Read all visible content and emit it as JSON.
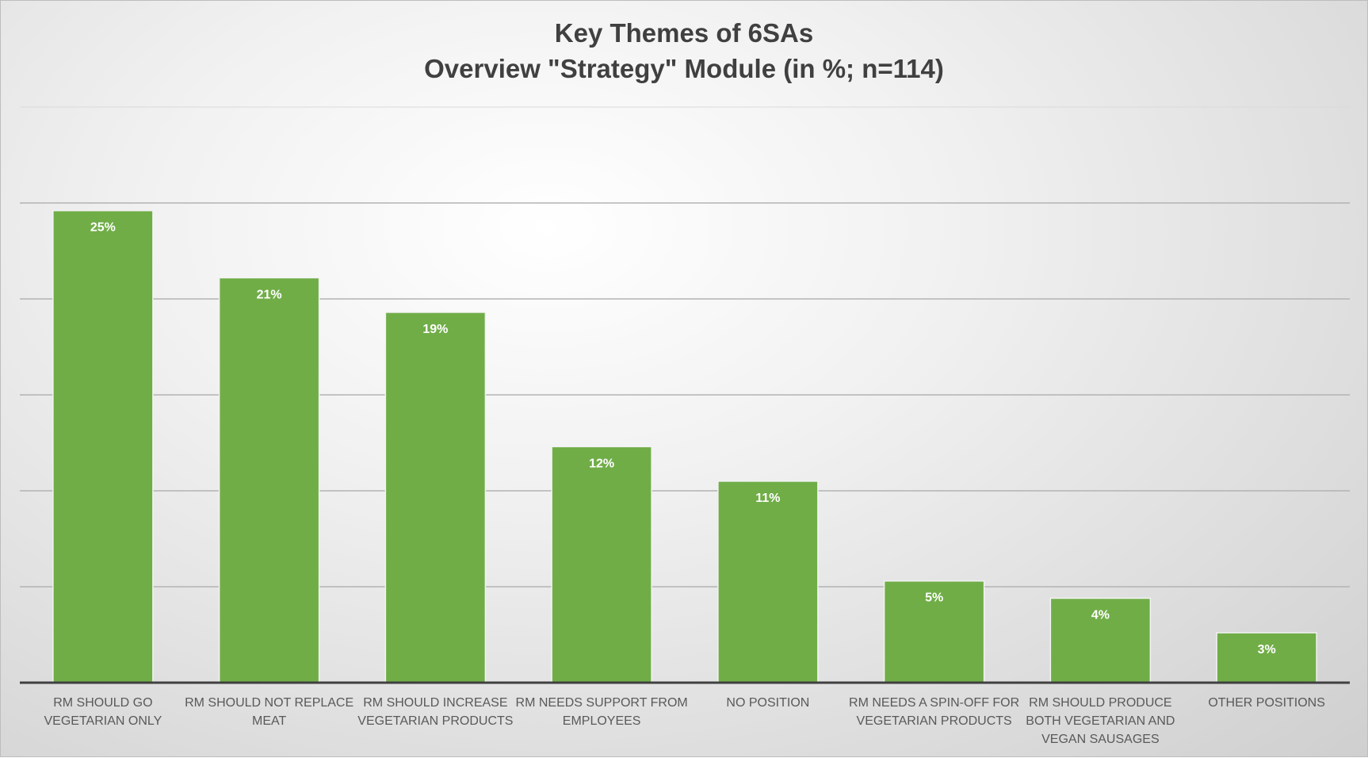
{
  "chart_data": {
    "type": "bar",
    "title": "Key Themes of 6SAs",
    "subtitle": "Overview \"Strategy\" Module (in %; n=114)",
    "categories": [
      [
        "RM SHOULD GO",
        "VEGETARIAN ONLY"
      ],
      [
        "RM SHOULD NOT REPLACE",
        "MEAT"
      ],
      [
        "RM SHOULD INCREASE",
        "VEGETARIAN PRODUCTS"
      ],
      [
        "RM NEEDS SUPPORT FROM",
        "EMPLOYEES"
      ],
      [
        "NO POSITION"
      ],
      [
        "RM NEEDS A SPIN-OFF FOR",
        "VEGETARIAN PRODUCTS"
      ],
      [
        "RM SHOULD PRODUCE",
        "BOTH VEGETARIAN AND",
        "VEGAN SAUSAGES"
      ],
      [
        "OTHER POSITIONS"
      ]
    ],
    "values": [
      24.6,
      21.1,
      19.3,
      12.3,
      10.5,
      5.3,
      4.4,
      2.6
    ],
    "data_labels": [
      "25%",
      "21%",
      "19%",
      "12%",
      "11%",
      "5%",
      "4%",
      "3%"
    ],
    "ylim": [
      0,
      30
    ],
    "ytick_step": 5,
    "grid": true,
    "y_tick_labels_shown": false,
    "bar_color": "#70ad47",
    "label_color": "#ffffff"
  }
}
